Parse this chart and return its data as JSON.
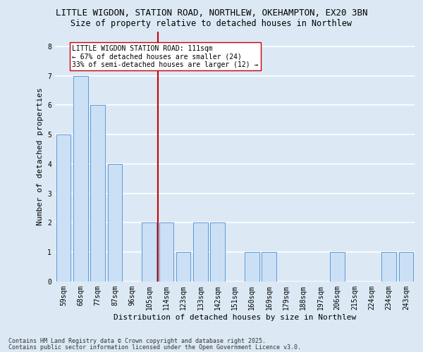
{
  "title1": "LITTLE WIGDON, STATION ROAD, NORTHLEW, OKEHAMPTON, EX20 3BN",
  "title2": "Size of property relative to detached houses in Northlew",
  "xlabel": "Distribution of detached houses by size in Northlew",
  "ylabel": "Number of detached properties",
  "categories": [
    "59sqm",
    "68sqm",
    "77sqm",
    "87sqm",
    "96sqm",
    "105sqm",
    "114sqm",
    "123sqm",
    "133sqm",
    "142sqm",
    "151sqm",
    "160sqm",
    "169sqm",
    "179sqm",
    "188sqm",
    "197sqm",
    "206sqm",
    "215sqm",
    "224sqm",
    "234sqm",
    "243sqm"
  ],
  "values": [
    5,
    7,
    6,
    4,
    0,
    2,
    2,
    1,
    2,
    2,
    0,
    1,
    1,
    0,
    0,
    0,
    1,
    0,
    0,
    1,
    1
  ],
  "bar_color": "#cce0f5",
  "bar_edge_color": "#5b9bd5",
  "red_line_color": "#cc0000",
  "annotation_text": "LITTLE WIGDON STATION ROAD: 111sqm\n← 67% of detached houses are smaller (24)\n33% of semi-detached houses are larger (12) →",
  "annotation_box_color": "#ffffff",
  "annotation_box_edge": "#cc0000",
  "yticks": [
    0,
    1,
    2,
    3,
    4,
    5,
    6,
    7,
    8
  ],
  "ylim": [
    0,
    8.5
  ],
  "footer1": "Contains HM Land Registry data © Crown copyright and database right 2025.",
  "footer2": "Contains public sector information licensed under the Open Government Licence v3.0.",
  "fig_bg_color": "#dce9f5",
  "plot_bg_color": "#dce9f5",
  "grid_color": "#ffffff",
  "title_fontsize": 9,
  "subtitle_fontsize": 8.5,
  "axis_label_fontsize": 8,
  "tick_fontsize": 7,
  "annotation_fontsize": 7,
  "footer_fontsize": 6
}
